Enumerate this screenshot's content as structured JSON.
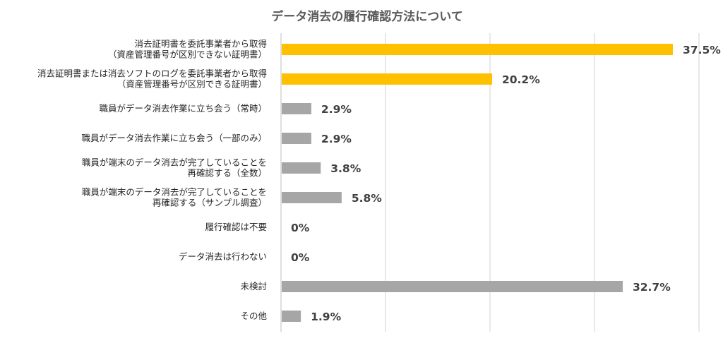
{
  "chart_data": {
    "type": "bar",
    "orientation": "horizontal",
    "title": "データ消去の履行確認方法について",
    "xlabel": "",
    "ylabel": "",
    "xlim": [
      0,
      40
    ],
    "grid": true,
    "legend": "none",
    "unit": "%",
    "highlight_color": "#FFC000",
    "default_color": "#A6A6A6",
    "categories": [
      [
        "消去証明書を委託事業者から取得",
        "（資産管理番号が区別できない証明書）"
      ],
      [
        "消去証明書または消去ソフトのログを委託事業者から取得",
        "（資産管理番号が区別できる証明書）"
      ],
      [
        "職員がデータ消去作業に立ち会う（常時）"
      ],
      [
        "職員がデータ消去作業に立ち会う（一部のみ）"
      ],
      [
        "職員が端末のデータ消去が完了していることを",
        "再確認する（全数）"
      ],
      [
        "職員が端末のデータ消去が完了していることを",
        "再確認する（サンプル調査）"
      ],
      [
        "履行確認は不要"
      ],
      [
        "データ消去は行わない"
      ],
      [
        "未検討"
      ],
      [
        "その他"
      ]
    ],
    "values": [
      37.5,
      20.2,
      2.9,
      2.9,
      3.8,
      5.8,
      0,
      0,
      32.7,
      1.9
    ],
    "value_labels": [
      "37.5%",
      "20.2%",
      "2.9%",
      "2.9%",
      "3.8%",
      "5.8%",
      "0%",
      "0%",
      "32.7%",
      "1.9%"
    ],
    "highlighted": [
      true,
      true,
      false,
      false,
      false,
      false,
      false,
      false,
      false,
      false
    ]
  }
}
